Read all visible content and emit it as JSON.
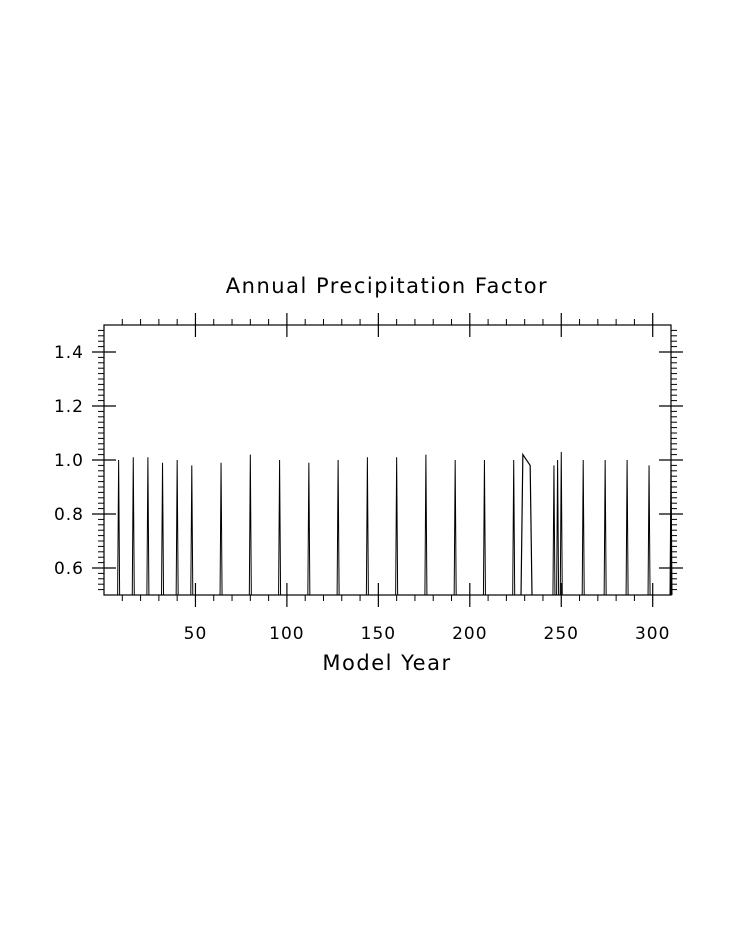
{
  "chart_data": {
    "type": "line",
    "title": "Annual Precipitation Factor",
    "xlabel": "Model Year",
    "ylabel": "",
    "xlim": [
      0,
      310
    ],
    "ylim": [
      0.5,
      1.5
    ],
    "x_ticks": [
      50,
      100,
      150,
      200,
      250,
      300
    ],
    "x_tick_labels": [
      "50",
      "100",
      "150",
      "200",
      "250",
      "300"
    ],
    "y_ticks": [
      0.6,
      0.8,
      1.0,
      1.2,
      1.4
    ],
    "y_tick_labels": [
      "0.6",
      "0.8",
      "1.0",
      "1.2",
      "1.4"
    ],
    "grid": false,
    "line_color": "#000000",
    "spikes": [
      {
        "x": 8,
        "y": 1.0
      },
      {
        "x": 16,
        "y": 1.01
      },
      {
        "x": 24,
        "y": 1.01
      },
      {
        "x": 32,
        "y": 0.99
      },
      {
        "x": 40,
        "y": 1.0
      },
      {
        "x": 48,
        "y": 0.98
      },
      {
        "x": 64,
        "y": 0.99
      },
      {
        "x": 80,
        "y": 1.02
      },
      {
        "x": 96,
        "y": 1.0
      },
      {
        "x": 112,
        "y": 0.99
      },
      {
        "x": 128,
        "y": 1.0
      },
      {
        "x": 144,
        "y": 1.01
      },
      {
        "x": 160,
        "y": 1.01
      },
      {
        "x": 176,
        "y": 1.02
      },
      {
        "x": 192,
        "y": 1.0
      },
      {
        "x": 208,
        "y": 1.0
      },
      {
        "x": 224,
        "y": 1.0
      },
      {
        "x": 246,
        "y": 0.98
      },
      {
        "x": 248,
        "y": 1.0
      },
      {
        "x": 250,
        "y": 1.03
      },
      {
        "x": 262,
        "y": 1.0
      },
      {
        "x": 274,
        "y": 1.0
      },
      {
        "x": 286,
        "y": 1.0
      },
      {
        "x": 298,
        "y": 0.98
      },
      {
        "x": 310,
        "y": 1.0
      }
    ],
    "segments": [
      {
        "x": [
          228,
          229,
          230,
          232,
          233,
          234
        ],
        "y": [
          0.5,
          1.02,
          1.01,
          0.99,
          0.98,
          0.5
        ]
      }
    ]
  }
}
